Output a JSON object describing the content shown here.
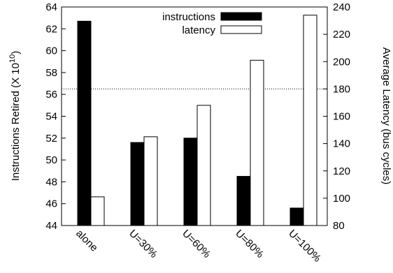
{
  "chart_data": {
    "type": "bar",
    "categories": [
      "alone",
      "U=30%",
      "U=60%",
      "U=80%",
      "U=100%"
    ],
    "series": [
      {
        "name": "instructions",
        "axis": "left",
        "color": "#000000",
        "values": [
          62.7,
          51.6,
          52.0,
          48.5,
          45.6
        ]
      },
      {
        "name": "latency",
        "axis": "right",
        "color": "#ffffff",
        "values": [
          101,
          145,
          168,
          201,
          234
        ]
      }
    ],
    "ylabel": "Instructions Retired (X 10",
    "ylabel_exp": "10",
    "ylabel_close": ")",
    "y2label": "Average Latency (bus cycles)",
    "ylim": [
      44,
      64
    ],
    "y2lim": [
      80,
      240
    ],
    "yticks": [
      44,
      46,
      48,
      50,
      52,
      54,
      56,
      58,
      60,
      62,
      64
    ],
    "y2ticks": [
      80,
      100,
      120,
      140,
      160,
      180,
      200,
      220,
      240
    ],
    "reference_line": {
      "axis": "right",
      "value": 180,
      "style": "dotted"
    },
    "legend": {
      "position": "top-right"
    },
    "grid": false
  }
}
